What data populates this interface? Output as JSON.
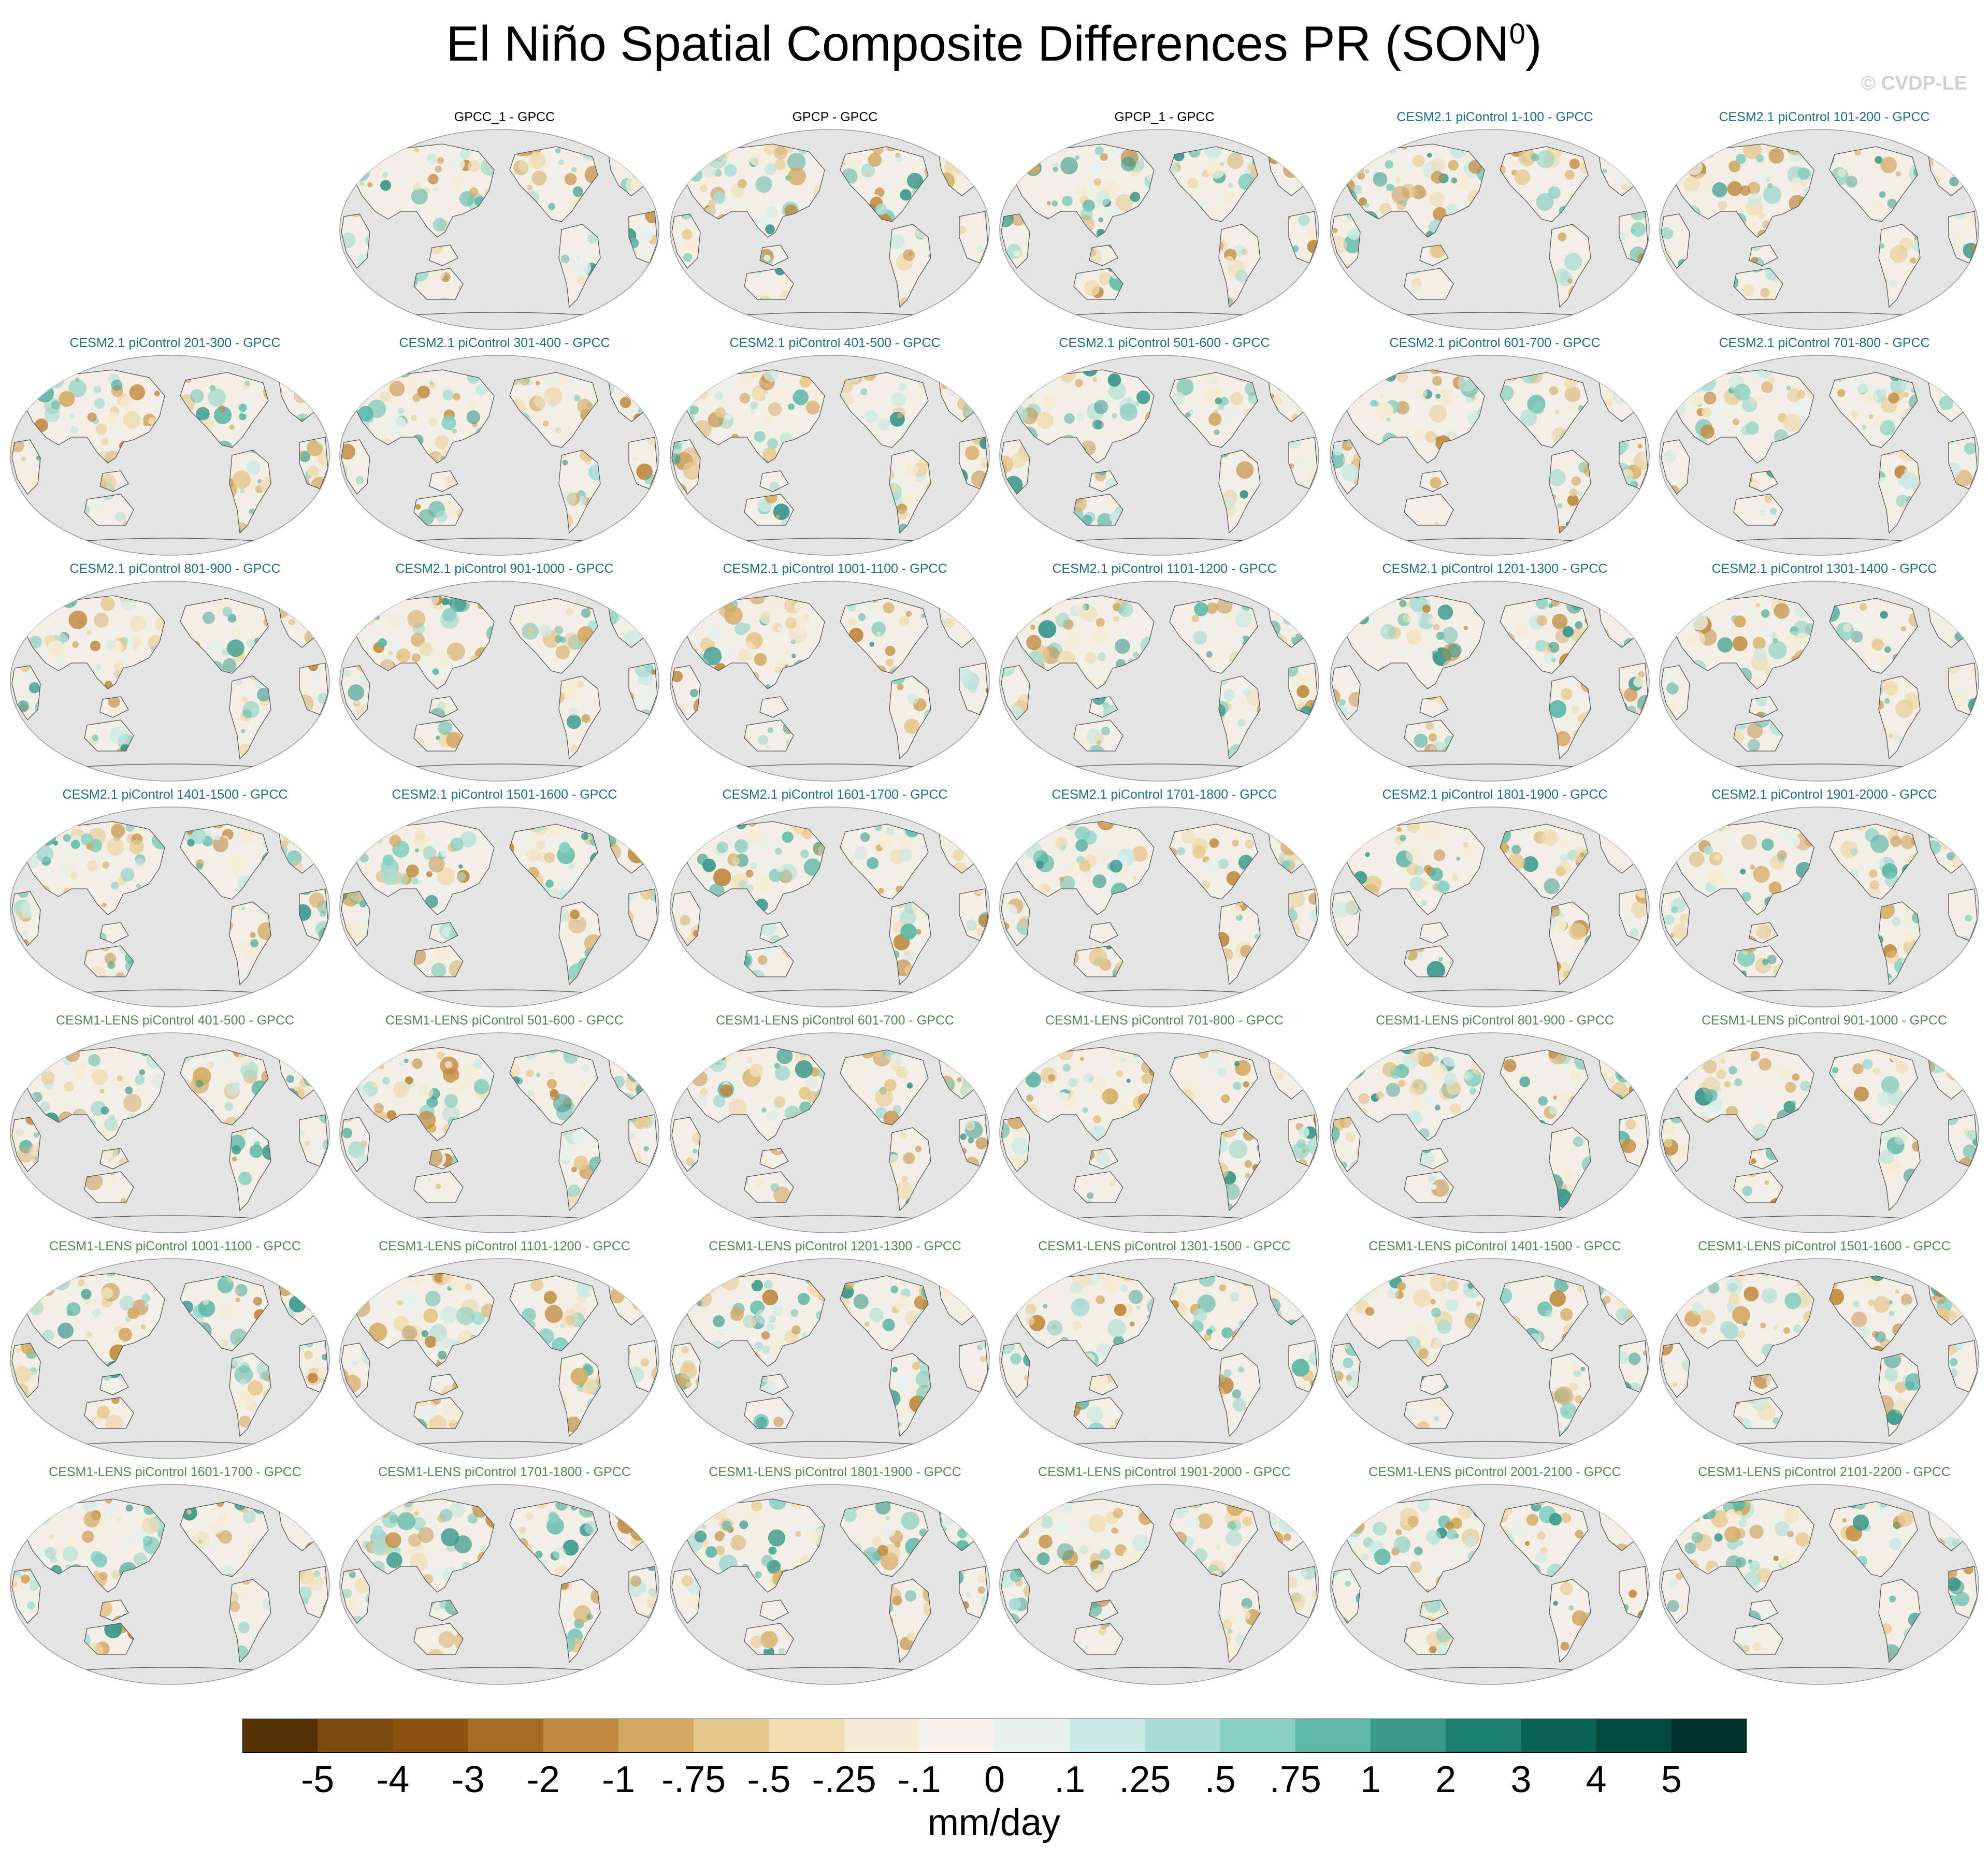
{
  "title": "El Niño Spatial Composite Differences PR (SON",
  "title_sup": "0",
  "title_end": ")",
  "credit": "© CVDP-LE",
  "colors": {
    "ocean": "#e4e4e4",
    "obs_title": "#000000",
    "cesm2_title": "#1a6e8c",
    "cesm1_title": "#4f8a4f",
    "coast": "#555555"
  },
  "chart_data": {
    "type": "heatmap",
    "projection": "Robinson, Pacific-centered, land-only precipitation differences",
    "panels": [
      {
        "title": "GPCC_1 - GPCC",
        "group": "obs",
        "row": 0,
        "col": 1
      },
      {
        "title": "GPCP - GPCC",
        "group": "obs",
        "row": 0,
        "col": 2
      },
      {
        "title": "GPCP_1 - GPCC",
        "group": "obs",
        "row": 0,
        "col": 3
      },
      {
        "title": "CESM2.1 piControl 1-100 - GPCC",
        "group": "cesm2",
        "row": 0,
        "col": 4
      },
      {
        "title": "CESM2.1 piControl 101-200 - GPCC",
        "group": "cesm2",
        "row": 0,
        "col": 5
      },
      {
        "title": "CESM2.1 piControl 201-300 - GPCC",
        "group": "cesm2",
        "row": 1,
        "col": 0
      },
      {
        "title": "CESM2.1 piControl 301-400 - GPCC",
        "group": "cesm2",
        "row": 1,
        "col": 1
      },
      {
        "title": "CESM2.1 piControl 401-500 - GPCC",
        "group": "cesm2",
        "row": 1,
        "col": 2
      },
      {
        "title": "CESM2.1 piControl 501-600 - GPCC",
        "group": "cesm2",
        "row": 1,
        "col": 3
      },
      {
        "title": "CESM2.1 piControl 601-700 - GPCC",
        "group": "cesm2",
        "row": 1,
        "col": 4
      },
      {
        "title": "CESM2.1 piControl 701-800 - GPCC",
        "group": "cesm2",
        "row": 1,
        "col": 5
      },
      {
        "title": "CESM2.1 piControl 801-900 - GPCC",
        "group": "cesm2",
        "row": 2,
        "col": 0
      },
      {
        "title": "CESM2.1 piControl 901-1000 - GPCC",
        "group": "cesm2",
        "row": 2,
        "col": 1
      },
      {
        "title": "CESM2.1 piControl 1001-1100 - GPCC",
        "group": "cesm2",
        "row": 2,
        "col": 2
      },
      {
        "title": "CESM2.1 piControl 1101-1200 - GPCC",
        "group": "cesm2",
        "row": 2,
        "col": 3
      },
      {
        "title": "CESM2.1 piControl 1201-1300 - GPCC",
        "group": "cesm2",
        "row": 2,
        "col": 4
      },
      {
        "title": "CESM2.1 piControl 1301-1400 - GPCC",
        "group": "cesm2",
        "row": 2,
        "col": 5
      },
      {
        "title": "CESM2.1 piControl 1401-1500 - GPCC",
        "group": "cesm2",
        "row": 3,
        "col": 0
      },
      {
        "title": "CESM2.1 piControl 1501-1600 - GPCC",
        "group": "cesm2",
        "row": 3,
        "col": 1
      },
      {
        "title": "CESM2.1 piControl 1601-1700 - GPCC",
        "group": "cesm2",
        "row": 3,
        "col": 2
      },
      {
        "title": "CESM2.1 piControl 1701-1800 - GPCC",
        "group": "cesm2",
        "row": 3,
        "col": 3
      },
      {
        "title": "CESM2.1 piControl 1801-1900 - GPCC",
        "group": "cesm2",
        "row": 3,
        "col": 4
      },
      {
        "title": "CESM2.1 piControl 1901-2000 - GPCC",
        "group": "cesm2",
        "row": 3,
        "col": 5
      },
      {
        "title": "CESM1-LENS piControl 401-500 - GPCC",
        "group": "cesm1",
        "row": 4,
        "col": 0
      },
      {
        "title": "CESM1-LENS piControl 501-600 - GPCC",
        "group": "cesm1",
        "row": 4,
        "col": 1
      },
      {
        "title": "CESM1-LENS piControl 601-700 - GPCC",
        "group": "cesm1",
        "row": 4,
        "col": 2
      },
      {
        "title": "CESM1-LENS piControl 701-800 - GPCC",
        "group": "cesm1",
        "row": 4,
        "col": 3
      },
      {
        "title": "CESM1-LENS piControl 801-900 - GPCC",
        "group": "cesm1",
        "row": 4,
        "col": 4
      },
      {
        "title": "CESM1-LENS piControl 901-1000 - GPCC",
        "group": "cesm1",
        "row": 4,
        "col": 5
      },
      {
        "title": "CESM1-LENS piControl 1001-1100 - GPCC",
        "group": "cesm1",
        "row": 5,
        "col": 0
      },
      {
        "title": "CESM1-LENS piControl 1101-1200 - GPCC",
        "group": "cesm1",
        "row": 5,
        "col": 1
      },
      {
        "title": "CESM1-LENS piControl 1201-1300 - GPCC",
        "group": "cesm1",
        "row": 5,
        "col": 2
      },
      {
        "title": "CESM1-LENS piControl 1301-1500 - GPCC",
        "group": "cesm1",
        "row": 5,
        "col": 3
      },
      {
        "title": "CESM1-LENS piControl 1401-1500 - GPCC",
        "group": "cesm1",
        "row": 5,
        "col": 4
      },
      {
        "title": "CESM1-LENS piControl 1501-1600 - GPCC",
        "group": "cesm1",
        "row": 5,
        "col": 5
      },
      {
        "title": "CESM1-LENS piControl 1601-1700 - GPCC",
        "group": "cesm1",
        "row": 6,
        "col": 0
      },
      {
        "title": "CESM1-LENS piControl 1701-1800 - GPCC",
        "group": "cesm1",
        "row": 6,
        "col": 1
      },
      {
        "title": "CESM1-LENS piControl 1801-1900 - GPCC",
        "group": "cesm1",
        "row": 6,
        "col": 2
      },
      {
        "title": "CESM1-LENS piControl 1901-2000 - GPCC",
        "group": "cesm1",
        "row": 6,
        "col": 3
      },
      {
        "title": "CESM1-LENS piControl 2001-2100 - GPCC",
        "group": "cesm1",
        "row": 6,
        "col": 4
      },
      {
        "title": "CESM1-LENS piControl 2101-2200 - GPCC",
        "group": "cesm1",
        "row": 6,
        "col": 5
      }
    ],
    "colorbar": {
      "labels": [
        "-5",
        "-4",
        "-3",
        "-2",
        "-1",
        "-.75",
        "-.5",
        "-.25",
        "-.1",
        "0",
        ".1",
        ".25",
        ".5",
        ".75",
        "1",
        "2",
        "3",
        "4",
        "5"
      ],
      "colors": [
        "#543005",
        "#7a4a0e",
        "#8c5210",
        "#a86b22",
        "#c08a3e",
        "#d4aa62",
        "#e6c88c",
        "#efdcb0",
        "#f5ecd3",
        "#f5f2ec",
        "#e7f1ee",
        "#cbe9e3",
        "#a9ddd3",
        "#86cfc1",
        "#5db8a7",
        "#38998b",
        "#1c7f72",
        "#0a6257",
        "#03493f",
        "#00312a"
      ],
      "units": "mm/day"
    }
  }
}
